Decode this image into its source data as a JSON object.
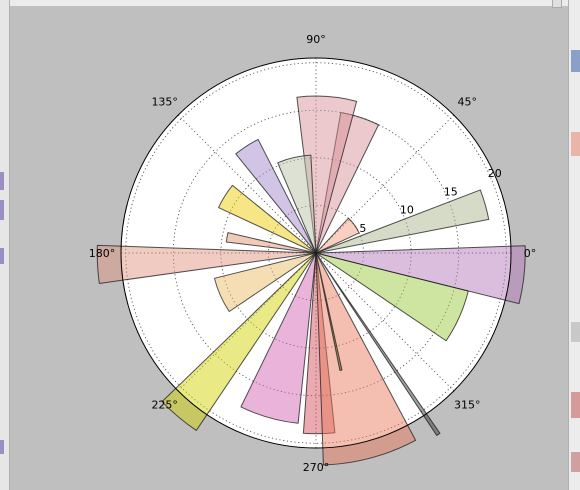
{
  "window": {
    "colors": {
      "figure_background": "#bfbfbf",
      "axes_background": "#ffffff",
      "grid": "#555555",
      "frame_edge": "#d8d8d8"
    }
  },
  "chart_data": {
    "type": "bar",
    "projection": "polar",
    "title": "",
    "angle_tick_labels": [
      "0°",
      "45°",
      "90°",
      "135°",
      "180°",
      "225°",
      "270°",
      "315°"
    ],
    "radial_tick_labels": [
      "5",
      "10",
      "15",
      "20"
    ],
    "rlim": [
      0,
      20.5
    ],
    "grid": true,
    "bars": [
      {
        "theta_deg": 16,
        "width_deg": 10,
        "radius": 18.5,
        "color": "#a9b48d"
      },
      {
        "theta_deg": 36,
        "width_deg": 22,
        "radius": 5.0,
        "color": "#f59a7e"
      },
      {
        "theta_deg": 72,
        "width_deg": 16,
        "radius": 15.0,
        "color": "#d58f96"
      },
      {
        "theta_deg": 86,
        "width_deg": 22,
        "radius": 16.5,
        "color": "#d58f96"
      },
      {
        "theta_deg": 103,
        "width_deg": 20,
        "radius": 10.3,
        "color": "#b8c0a2"
      },
      {
        "theta_deg": 123,
        "width_deg": 12,
        "radius": 13.4,
        "color": "#9e83c9"
      },
      {
        "theta_deg": 148,
        "width_deg": 14,
        "radius": 11.3,
        "color": "#eccb00"
      },
      {
        "theta_deg": 170,
        "width_deg": 6,
        "radius": 9.5,
        "color": "#df936f"
      },
      {
        "theta_deg": 183,
        "width_deg": 10,
        "radius": 23.0,
        "color": "#df937f"
      },
      {
        "theta_deg": 204,
        "width_deg": 20,
        "radius": 11.0,
        "color": "#eabb62"
      },
      {
        "theta_deg": 230,
        "width_deg": 12,
        "radius": 22.5,
        "color": "#d0d200"
      },
      {
        "theta_deg": 254,
        "width_deg": 20,
        "radius": 18.0,
        "color": "#d463b1"
      },
      {
        "theta_deg": 271,
        "width_deg": 10,
        "radius": 19.0,
        "color": "#d34e5a"
      },
      {
        "theta_deg": 285,
        "width_deg": 26,
        "radius": 22.3,
        "color": "#e87a5b"
      },
      {
        "theta_deg": 282,
        "width_deg": 1,
        "radius": 12.6,
        "color": "#3a5000"
      },
      {
        "theta_deg": 304,
        "width_deg": 1,
        "radius": 23.0,
        "color": "#3a3a3a"
      },
      {
        "theta_deg": 336,
        "width_deg": 20,
        "radius": 16.5,
        "color": "#99c83c"
      },
      {
        "theta_deg": 354,
        "width_deg": 16,
        "radius": 22.0,
        "color": "#b377b8"
      }
    ]
  }
}
